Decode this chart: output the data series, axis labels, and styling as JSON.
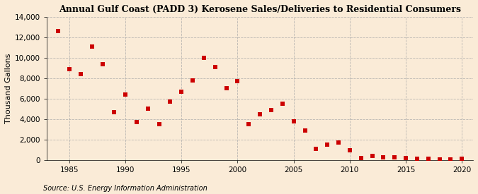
{
  "title": "Annual Gulf Coast (PADD 3) Kerosene Sales/Deliveries to Residential Consumers",
  "ylabel": "Thousand Gallons",
  "source": "Source: U.S. Energy Information Administration",
  "background_color": "#faebd7",
  "plot_bg_color": "#faebd7",
  "marker_color": "#cc0000",
  "marker_size": 4,
  "xlim": [
    1983,
    2021
  ],
  "ylim": [
    0,
    14001
  ],
  "yticks": [
    0,
    2000,
    4000,
    6000,
    8000,
    10000,
    12000,
    14000
  ],
  "xticks": [
    1985,
    1990,
    1995,
    2000,
    2005,
    2010,
    2015,
    2020
  ],
  "years": [
    1984,
    1985,
    1986,
    1987,
    1988,
    1989,
    1990,
    1991,
    1992,
    1993,
    1994,
    1995,
    1996,
    1997,
    1998,
    1999,
    2000,
    2001,
    2002,
    2003,
    2004,
    2005,
    2006,
    2007,
    2008,
    2009,
    2010,
    2011,
    2012,
    2013,
    2014,
    2015,
    2016,
    2017,
    2018,
    2019,
    2020
  ],
  "values": [
    12600,
    8900,
    8400,
    11100,
    9400,
    4700,
    6400,
    3700,
    5000,
    3500,
    5700,
    6700,
    7800,
    10000,
    9100,
    7000,
    7700,
    3500,
    4500,
    4900,
    5500,
    3800,
    2900,
    1100,
    1500,
    1700,
    1000,
    200,
    400,
    300,
    300,
    200,
    150,
    150,
    100,
    100,
    150
  ],
  "title_fontsize": 9,
  "tick_fontsize": 7.5,
  "ylabel_fontsize": 8,
  "source_fontsize": 7
}
